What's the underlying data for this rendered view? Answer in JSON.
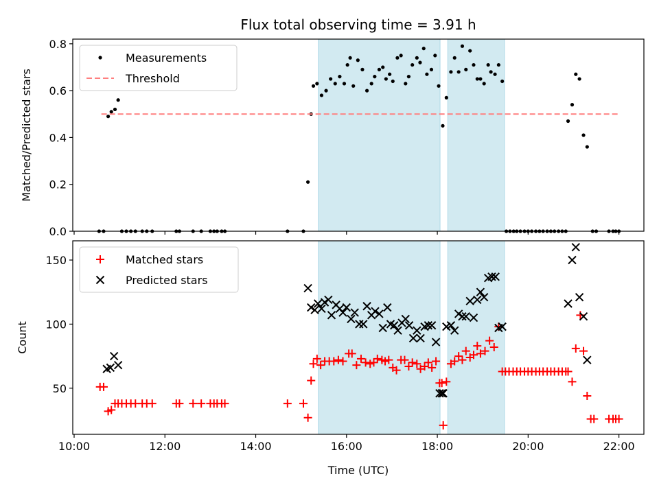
{
  "title": "Flux total observing time = 3.91 h",
  "xlabel": "Time (UTC)",
  "x_ticks": [
    "10:00",
    "12:00",
    "14:00",
    "16:00",
    "18:00",
    "20:00",
    "22:00"
  ],
  "chart_data": [
    {
      "type": "scatter",
      "ylabel": "Matched/Predicted stars",
      "xlim_hours": [
        9.97,
        22.55
      ],
      "ylim": [
        0,
        0.82
      ],
      "y_ticks": [
        "0.0",
        "0.2",
        "0.4",
        "0.6",
        "0.8"
      ],
      "grid": false,
      "legend": "top-left",
      "shaded_spans_hours": [
        [
          15.38,
          18.06
        ],
        [
          18.23,
          19.48
        ]
      ],
      "shade_color": "#add8e6",
      "series": [
        {
          "name": "Measurements",
          "marker": "dot",
          "color": "#000000",
          "x_hours": [
            10.55,
            10.65,
            10.75,
            10.82,
            10.9,
            10.97,
            11.05,
            11.15,
            11.25,
            11.35,
            11.5,
            11.6,
            11.72,
            12.25,
            12.32,
            12.62,
            12.8,
            13.0,
            13.08,
            13.15,
            13.25,
            13.32,
            14.7,
            15.05,
            15.15,
            15.22,
            15.27,
            15.35,
            15.45,
            15.55,
            15.65,
            15.75,
            15.85,
            15.95,
            16.02,
            16.08,
            16.15,
            16.25,
            16.35,
            16.45,
            16.55,
            16.62,
            16.72,
            16.8,
            16.87,
            16.95,
            17.02,
            17.12,
            17.2,
            17.3,
            17.37,
            17.45,
            17.55,
            17.62,
            17.7,
            17.77,
            17.87,
            17.95,
            18.03,
            18.12,
            18.2,
            18.3,
            18.38,
            18.47,
            18.55,
            18.63,
            18.72,
            18.8,
            18.88,
            18.95,
            19.03,
            19.12,
            19.18,
            19.27,
            19.35,
            19.43,
            19.52,
            19.6,
            19.68,
            19.75,
            19.83,
            19.92,
            20.0,
            20.08,
            20.17,
            20.25,
            20.33,
            20.42,
            20.5,
            20.58,
            20.67,
            20.75,
            20.83,
            20.88,
            20.97,
            21.05,
            21.13,
            21.22,
            21.3,
            21.42,
            21.5,
            21.78,
            21.87,
            21.93,
            22.0
          ],
          "y": [
            0,
            0,
            0.49,
            0.51,
            0.52,
            0.56,
            0,
            0,
            0,
            0,
            0,
            0,
            0,
            0,
            0,
            0,
            0,
            0,
            0,
            0,
            0,
            0,
            0,
            0,
            0.21,
            0.5,
            0.62,
            0.63,
            0.58,
            0.6,
            0.65,
            0.63,
            0.66,
            0.63,
            0.71,
            0.74,
            0.62,
            0.73,
            0.69,
            0.6,
            0.63,
            0.66,
            0.69,
            0.7,
            0.65,
            0.67,
            0.64,
            0.74,
            0.75,
            0.63,
            0.66,
            0.71,
            0.74,
            0.72,
            0.78,
            0.67,
            0.69,
            0.75,
            0.62,
            0.45,
            0.57,
            0.68,
            0.74,
            0.68,
            0.79,
            0.69,
            0.77,
            0.71,
            0.65,
            0.65,
            0.63,
            0.71,
            0.68,
            0.67,
            0.71,
            0.64,
            0,
            0,
            0,
            0,
            0,
            0,
            0,
            0,
            0,
            0,
            0,
            0,
            0,
            0,
            0,
            0,
            0,
            0.47,
            0.54,
            0.67,
            0.65,
            0.41,
            0.36,
            0,
            0,
            0,
            0,
            0,
            0
          ]
        },
        {
          "name": "Threshold",
          "marker": "dashed-line",
          "color": "#ff7f7f",
          "x_hours": [
            10.6,
            22.0
          ],
          "y": [
            0.5,
            0.5
          ]
        }
      ]
    },
    {
      "type": "scatter",
      "ylabel": "Count",
      "xlim_hours": [
        9.97,
        22.55
      ],
      "ylim": [
        14,
        165
      ],
      "y_ticks": [
        "50",
        "100",
        "150"
      ],
      "grid": false,
      "legend": "top-left",
      "shaded_spans_hours": [
        [
          15.38,
          18.06
        ],
        [
          18.23,
          19.48
        ]
      ],
      "shade_color": "#add8e6",
      "series": [
        {
          "name": "Matched stars",
          "marker": "plus",
          "color": "#ff0000",
          "x_hours": [
            10.57,
            10.65,
            10.75,
            10.82,
            10.9,
            10.97,
            11.05,
            11.15,
            11.25,
            11.35,
            11.5,
            11.6,
            11.72,
            12.25,
            12.32,
            12.62,
            12.8,
            13.0,
            13.08,
            13.15,
            13.25,
            13.32,
            14.7,
            15.05,
            15.15,
            15.22,
            15.27,
            15.35,
            15.43,
            15.52,
            15.62,
            15.72,
            15.82,
            15.92,
            16.05,
            16.12,
            16.22,
            16.32,
            16.42,
            16.52,
            16.6,
            16.68,
            16.78,
            16.85,
            16.93,
            17.02,
            17.1,
            17.2,
            17.28,
            17.37,
            17.45,
            17.55,
            17.63,
            17.72,
            17.8,
            17.88,
            17.97,
            18.05,
            18.1,
            18.13,
            18.2,
            18.3,
            18.38,
            18.47,
            18.55,
            18.63,
            18.72,
            18.8,
            18.88,
            18.95,
            19.05,
            19.15,
            19.25,
            19.35,
            19.43,
            19.5,
            19.58,
            19.67,
            19.75,
            19.83,
            19.92,
            20.0,
            20.08,
            20.17,
            20.25,
            20.33,
            20.42,
            20.5,
            20.58,
            20.67,
            20.75,
            20.83,
            20.88,
            20.97,
            21.05,
            21.15,
            21.22,
            21.3,
            21.38,
            21.45,
            21.78,
            21.87,
            21.93,
            22.0
          ],
          "y": [
            51,
            51,
            32,
            33,
            38,
            38,
            38,
            38,
            38,
            38,
            38,
            38,
            38,
            38,
            38,
            38,
            38,
            38,
            38,
            38,
            38,
            38,
            38,
            38,
            27,
            56,
            69,
            73,
            68,
            71,
            71,
            71,
            72,
            71,
            77,
            77,
            68,
            73,
            70,
            69,
            70,
            73,
            72,
            71,
            72,
            66,
            64,
            72,
            72,
            67,
            70,
            69,
            65,
            67,
            70,
            66,
            71,
            54,
            54,
            21,
            55,
            69,
            71,
            75,
            72,
            79,
            74,
            76,
            83,
            77,
            79,
            87,
            82,
            98,
            63,
            63,
            63,
            63,
            63,
            63,
            63,
            63,
            63,
            63,
            63,
            63,
            63,
            63,
            63,
            63,
            63,
            63,
            63,
            55,
            81,
            107,
            79,
            44,
            26,
            26,
            26,
            26,
            26,
            26
          ]
        },
        {
          "name": "Predicted stars",
          "marker": "x",
          "color": "#000000",
          "x_hours": [
            10.72,
            10.8,
            10.88,
            10.97,
            15.15,
            15.22,
            15.3,
            15.37,
            15.45,
            15.52,
            15.6,
            15.67,
            15.77,
            15.85,
            15.92,
            16.0,
            16.1,
            16.18,
            16.28,
            16.37,
            16.45,
            16.55,
            16.63,
            16.72,
            16.8,
            16.9,
            16.97,
            17.05,
            17.13,
            17.22,
            17.3,
            17.38,
            17.47,
            17.55,
            17.63,
            17.72,
            17.8,
            17.88,
            17.97,
            18.05,
            18.1,
            18.13,
            18.2,
            18.3,
            18.38,
            18.47,
            18.55,
            18.63,
            18.72,
            18.8,
            18.88,
            18.95,
            19.03,
            19.12,
            19.2,
            19.28,
            19.35,
            19.43,
            20.88,
            20.97,
            21.05,
            21.13,
            21.22,
            21.3
          ],
          "y": [
            65,
            66,
            75,
            68,
            128,
            113,
            111,
            116,
            112,
            117,
            119,
            107,
            115,
            112,
            109,
            113,
            104,
            109,
            100,
            100,
            114,
            107,
            110,
            108,
            97,
            113,
            100,
            99,
            95,
            101,
            104,
            99,
            89,
            95,
            89,
            98,
            99,
            99,
            86,
            46,
            46,
            46,
            98,
            99,
            95,
            108,
            106,
            106,
            118,
            105,
            119,
            125,
            121,
            136,
            137,
            137,
            97,
            98,
            116,
            150,
            160,
            121,
            106,
            72
          ]
        }
      ]
    }
  ]
}
